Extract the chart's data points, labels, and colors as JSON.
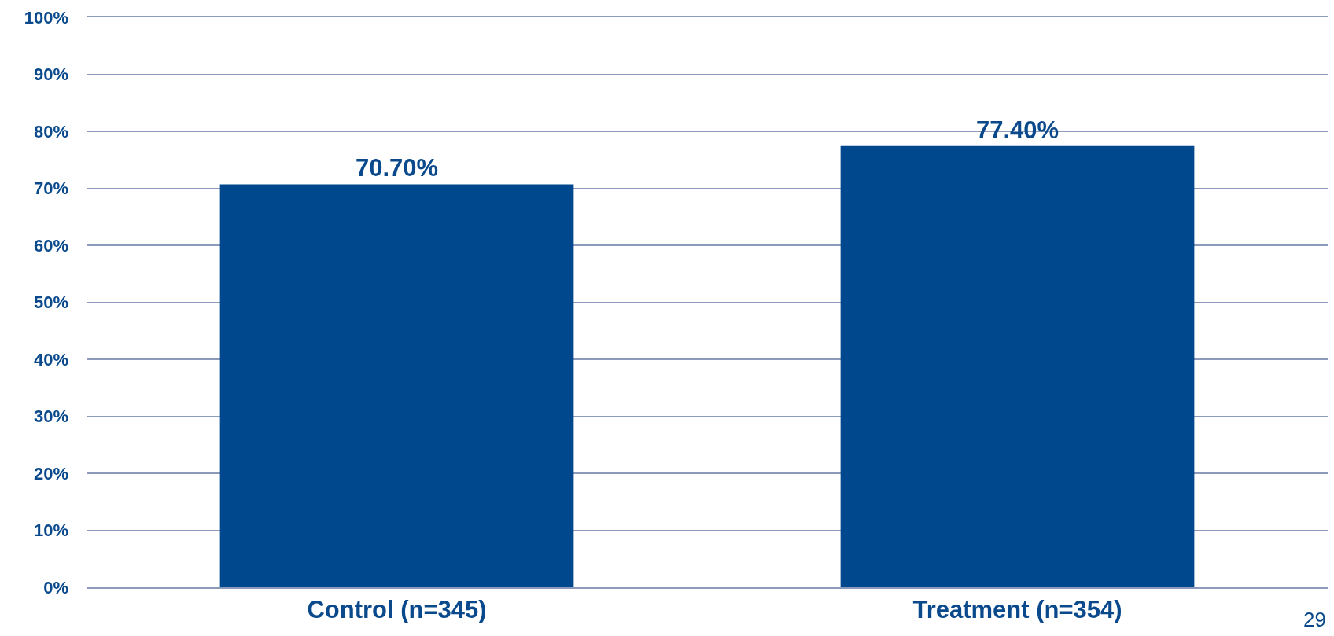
{
  "chart_data": {
    "type": "bar",
    "categories": [
      "Control (n=345)",
      "Treatment (n=354)"
    ],
    "values": [
      70.7,
      77.4
    ],
    "value_labels": [
      "70.70%",
      "77.40%"
    ],
    "color": "#00488e",
    "ylim": [
      0,
      100
    ],
    "yticks": [
      {
        "value": 0,
        "label": "0%"
      },
      {
        "value": 10,
        "label": "10%"
      },
      {
        "value": 20,
        "label": "20%"
      },
      {
        "value": 30,
        "label": "30%"
      },
      {
        "value": 40,
        "label": "40%"
      },
      {
        "value": 50,
        "label": "50%"
      },
      {
        "value": 60,
        "label": "60%"
      },
      {
        "value": 70,
        "label": "70%"
      },
      {
        "value": 80,
        "label": "80%"
      },
      {
        "value": 90,
        "label": "90%"
      },
      {
        "value": 100,
        "label": "100%"
      }
    ],
    "grid": "y",
    "legend": false,
    "annotations": [
      "29"
    ]
  }
}
